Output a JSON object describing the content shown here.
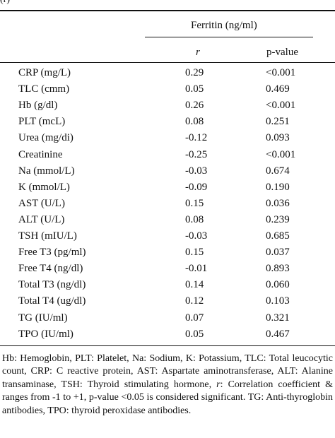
{
  "caption_fragment": "(r)",
  "header": {
    "group": "Ferritin (ng/ml)",
    "col_r": "r",
    "col_p": "p-value"
  },
  "rows": [
    {
      "name": "CRP (mg/L)",
      "r": "0.29",
      "p": "<0.001"
    },
    {
      "name": "TLC (cmm)",
      "r": "0.05",
      "p": "0.469"
    },
    {
      "name": "Hb (g/dl)",
      "r": "0.26",
      "p": "<0.001"
    },
    {
      "name": "PLT (mcL)",
      "r": "0.08",
      "p": "0.251"
    },
    {
      "name": "Urea (mg/di)",
      "r": "-0.12",
      "p": "0.093"
    },
    {
      "name": "Creatinine",
      "r": "-0.25",
      "p": "<0.001"
    },
    {
      "name": "Na (mmol/L)",
      "r": "-0.03",
      "p": "0.674"
    },
    {
      "name": "K (mmol/L)",
      "r": "-0.09",
      "p": "0.190"
    },
    {
      "name": "AST (U/L)",
      "r": "0.15",
      "p": "0.036"
    },
    {
      "name": "ALT (U/L)",
      "r": "0.08",
      "p": "0.239"
    },
    {
      "name": "TSH (mIU/L)",
      "r": "-0.03",
      "p": "0.685"
    },
    {
      "name": "Free T3 (pg/ml)",
      "r": "0.15",
      "p": "0.037"
    },
    {
      "name": "Free T4 (ng/dl)",
      "r": "-0.01",
      "p": "0.893"
    },
    {
      "name": "Total T3 (ng/dl)",
      "r": "0.14",
      "p": "0.060"
    },
    {
      "name": "Total T4 (ug/dl)",
      "r": "0.12",
      "p": "0.103"
    },
    {
      "name": "TG (IU/ml)",
      "r": "0.07",
      "p": "0.321"
    },
    {
      "name": "TPO (IU/ml)",
      "r": "0.05",
      "p": "0.467"
    }
  ],
  "footnote": {
    "part1": "Hb: Hemoglobin, PLT: Platelet, Na: Sodium, K: Potassium, TLC: Total leucocytic count, CRP: C reactive protein, AST: Aspartate aminotransferase, ALT: Alanine transaminase, TSH: Thyroid stimulating hormone, ",
    "r_symbol": "r",
    "part2": ": Correlation coefficient & ranges from -1 to +1, p-value <0.05 is considered significant. TG: Anti-thyroglobin antibodies, TPO: thyroid peroxidase antibodies."
  }
}
